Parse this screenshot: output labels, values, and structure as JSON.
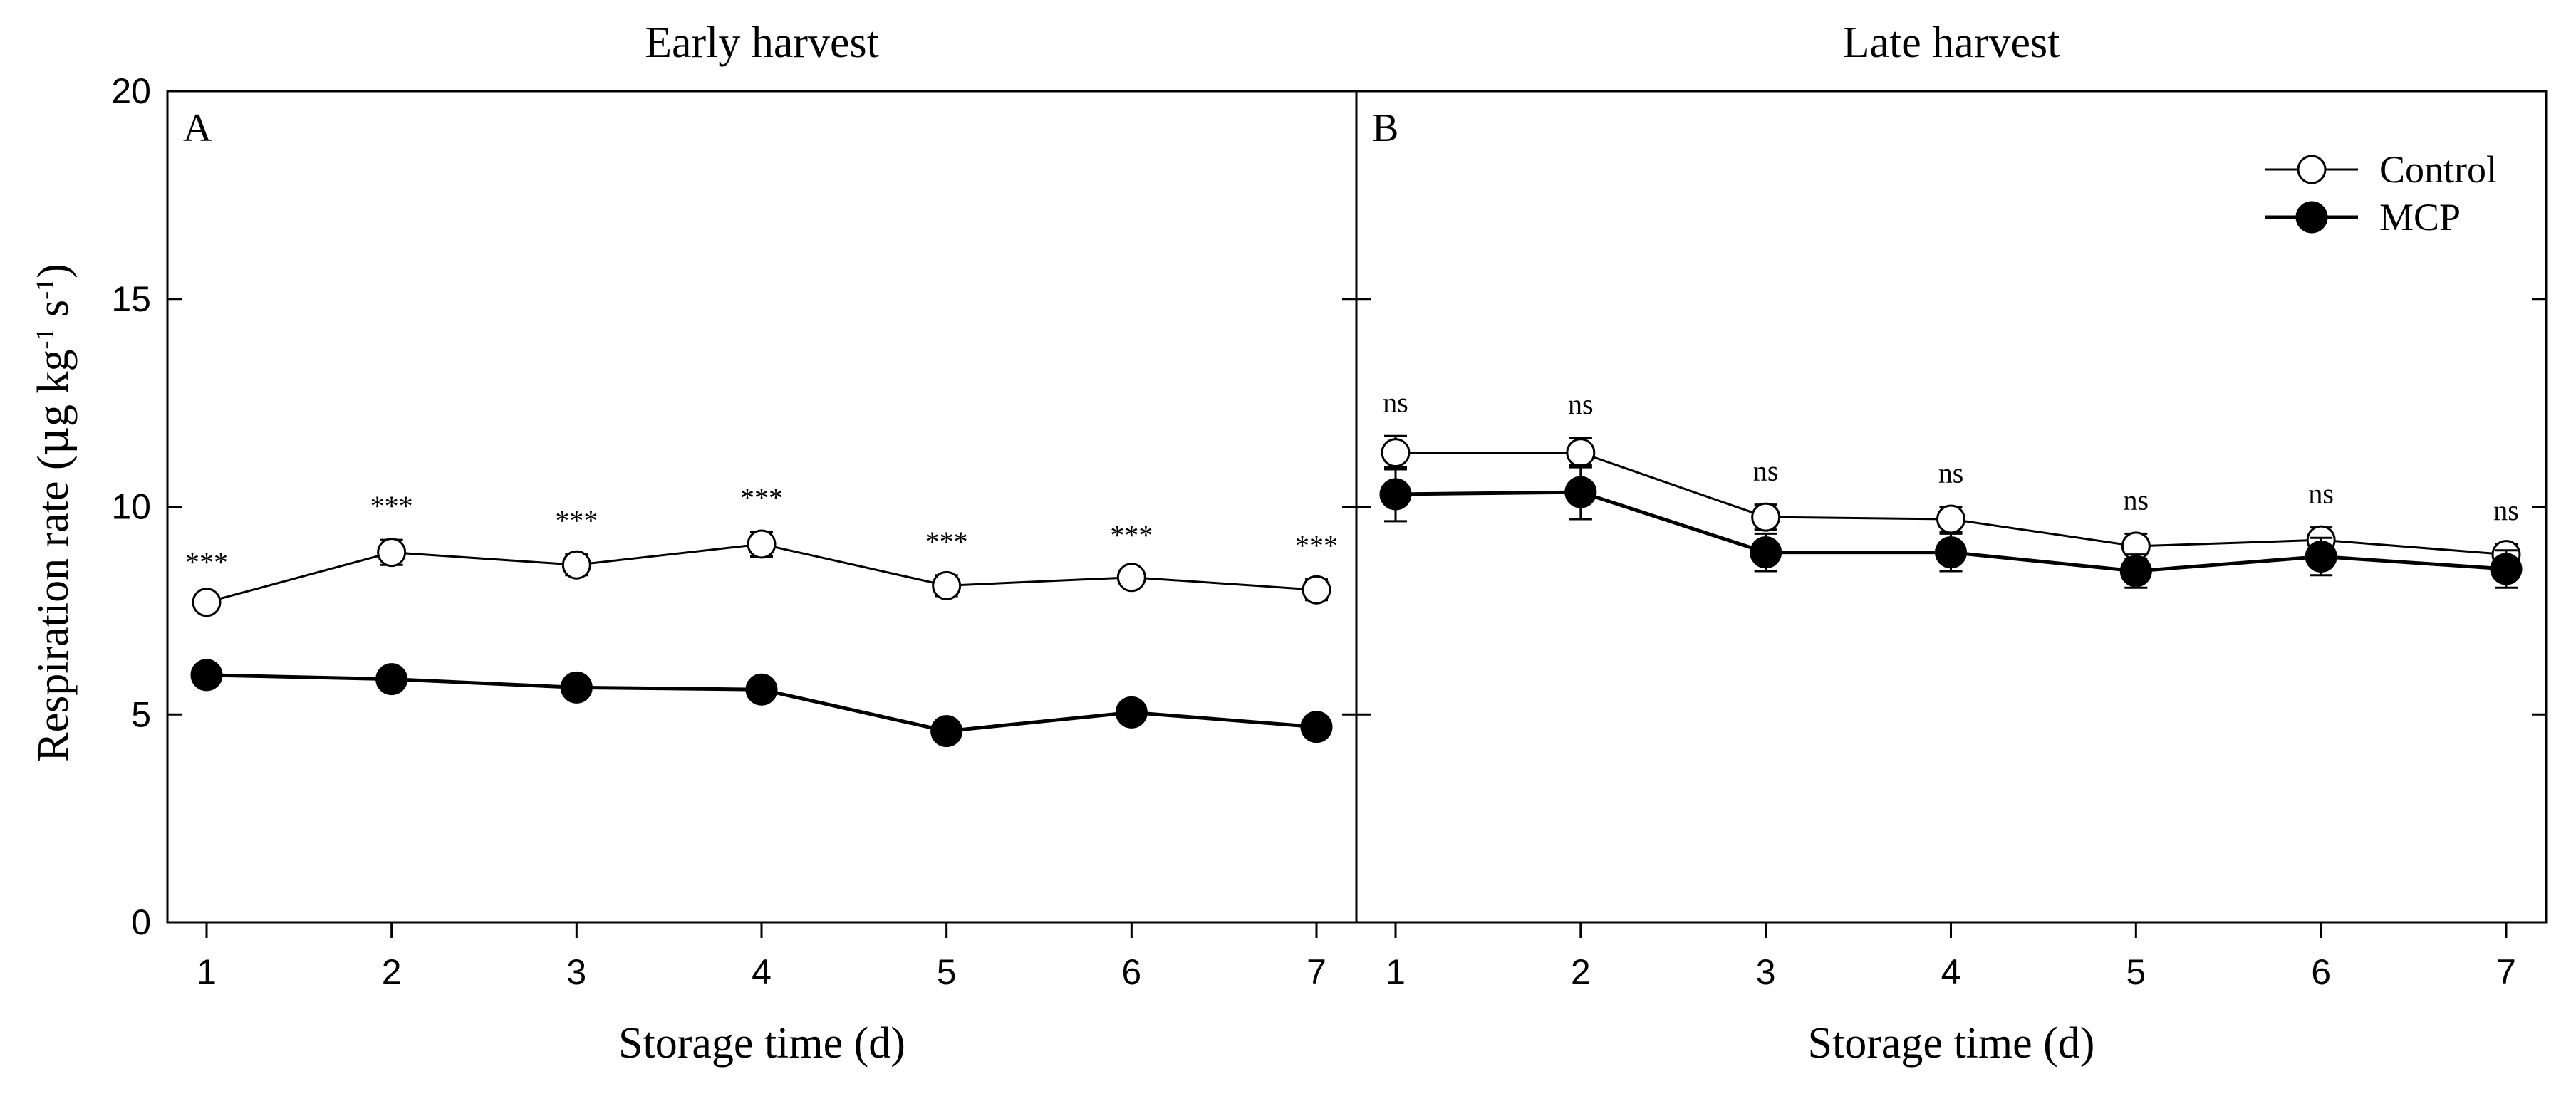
{
  "chart_data": {
    "type": "line",
    "ylabel_main": "Respiration rate (",
    "ylabel_mu": "μ",
    "ylabel_g": "g  kg",
    "ylabel_exp1": "-1",
    "ylabel_s": " s",
    "ylabel_exp2": "-1",
    "ylabel_close": ")",
    "ylim": [
      0,
      20
    ],
    "yticks": [
      0,
      5,
      10,
      15,
      20
    ],
    "legend": {
      "position": "top-right",
      "entries": [
        {
          "name": "Control",
          "marker": "open-circle"
        },
        {
          "name": "MCP",
          "marker": "filled-circle"
        }
      ]
    },
    "panels": [
      {
        "id": "A",
        "label": "A",
        "title": "Early harvest",
        "xlabel": "Storage time (d)",
        "categories": [
          "1",
          "2",
          "3",
          "4",
          "5",
          "6",
          "7"
        ],
        "series": [
          {
            "name": "Control",
            "values": [
              7.7,
              8.9,
              8.6,
              9.1,
              8.1,
              8.3,
              8.0
            ],
            "errors": [
              0.15,
              0.3,
              0.25,
              0.3,
              0.25,
              0.2,
              0.25
            ]
          },
          {
            "name": "MCP",
            "values": [
              5.95,
              5.85,
              5.65,
              5.6,
              4.6,
              5.05,
              4.7
            ],
            "errors": [
              0.2,
              0.15,
              0.15,
              0.15,
              0.15,
              0.15,
              0.15
            ]
          }
        ],
        "significance": [
          "***",
          "***",
          "***",
          "***",
          "***",
          "***",
          "***"
        ]
      },
      {
        "id": "B",
        "label": "B",
        "title": "Late harvest",
        "xlabel": "Storage time (d)",
        "categories": [
          "1",
          "2",
          "3",
          "4",
          "5",
          "6",
          "7"
        ],
        "series": [
          {
            "name": "Control",
            "values": [
              11.3,
              11.3,
              9.75,
              9.7,
              9.05,
              9.2,
              8.85
            ],
            "errors": [
              0.4,
              0.35,
              0.3,
              0.3,
              0.3,
              0.3,
              0.25
            ]
          },
          {
            "name": "MCP",
            "values": [
              10.3,
              10.35,
              8.9,
              8.9,
              8.45,
              8.8,
              8.5
            ],
            "errors": [
              0.65,
              0.65,
              0.45,
              0.45,
              0.4,
              0.45,
              0.45
            ]
          }
        ],
        "significance": [
          "ns",
          "ns",
          "ns",
          "ns",
          "ns",
          "ns",
          "ns"
        ]
      }
    ]
  }
}
